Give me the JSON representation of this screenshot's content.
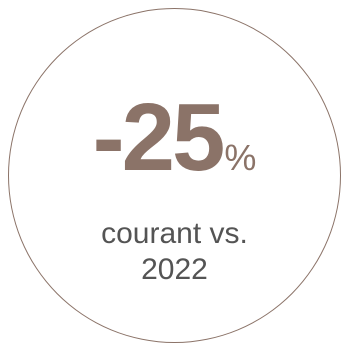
{
  "stat": {
    "value": "-25",
    "unit": "%"
  },
  "caption": {
    "line1": "courant vs.",
    "line2": "2022"
  },
  "colors": {
    "accent": "#8b7368",
    "text": "#545454",
    "background": "#ffffff"
  }
}
